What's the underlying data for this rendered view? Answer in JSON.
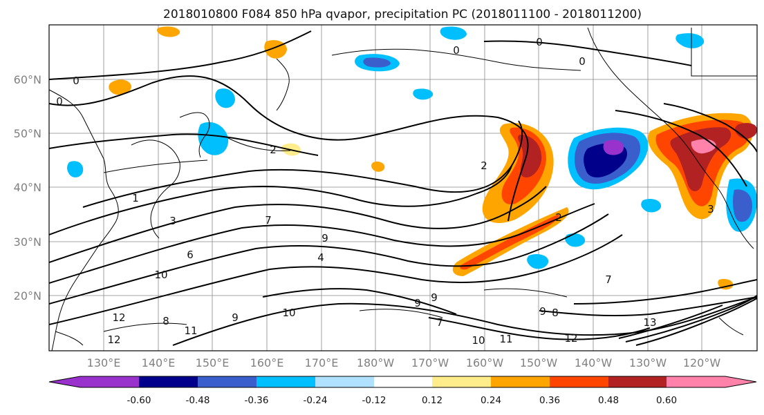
{
  "title": "2018010800 F084 850 hPa qvapor, precipitation PC (2018011100 - 2018011200)",
  "map": {
    "lat_ticks": [
      "60°N",
      "50°N",
      "40°N",
      "30°N",
      "20°N"
    ],
    "lon_ticks": [
      "130°E",
      "140°E",
      "150°E",
      "160°E",
      "170°E",
      "180°W",
      "170°W",
      "160°W",
      "150°W",
      "140°W",
      "130°W",
      "120°W"
    ],
    "contour_labels": [
      "0",
      "0",
      "0",
      "0",
      "0",
      "2",
      "2",
      "2",
      "1",
      "3",
      "3",
      "7",
      "9",
      "4",
      "6",
      "10",
      "10",
      "9",
      "9",
      "7",
      "9",
      "8",
      "12",
      "11",
      "12",
      "10",
      "11",
      "12",
      "13",
      "8",
      "7",
      "9"
    ],
    "colors": {
      "land_line": "#000000",
      "grid": "#888888",
      "contour": "#000000"
    }
  },
  "colorbar": {
    "colors": [
      "#9932CC",
      "#00008B",
      "#3A5FCD",
      "#00BFFF",
      "#B0E2FF",
      "#FFFFFF",
      "#FFEC8B",
      "#FFA500",
      "#FF4500",
      "#B22222",
      "#FF82AB"
    ],
    "tick_labels": [
      "-0.60",
      "-0.48",
      "-0.36",
      "-0.24",
      "-0.12",
      "0.12",
      "0.24",
      "0.36",
      "0.48",
      "0.60"
    ]
  }
}
